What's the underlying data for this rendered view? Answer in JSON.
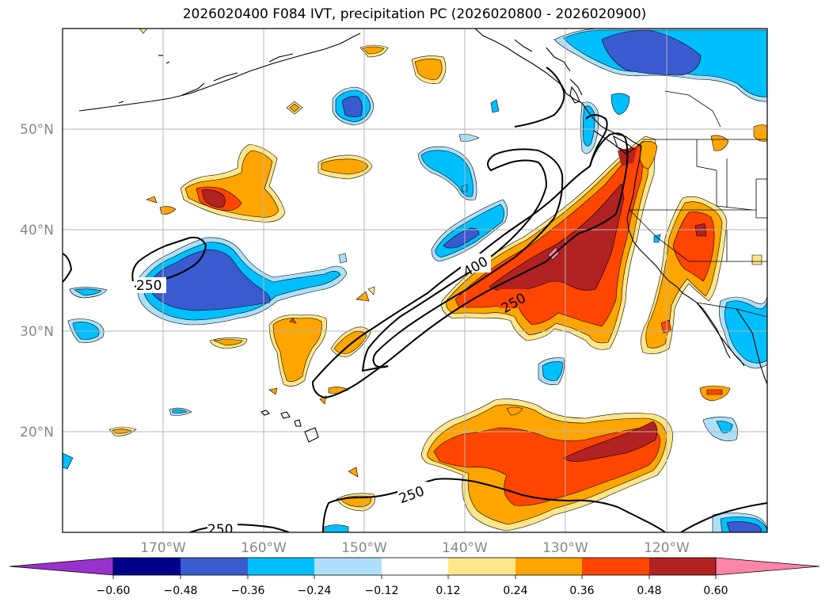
{
  "title": "2026020400 F084 IVT, precipitation PC (2026020800 - 2026020900)",
  "map": {
    "lon_range": [
      -180,
      -110
    ],
    "lat_range": [
      10,
      60
    ],
    "lat_labels": [
      "20°N",
      "30°N",
      "40°N",
      "50°N"
    ],
    "lon_labels": [
      "170°W",
      "160°W",
      "150°W",
      "140°W",
      "130°W",
      "120°W"
    ],
    "contour_labels": [
      "250",
      "400",
      "250",
      "250",
      "250"
    ]
  },
  "colorbar": {
    "ticks": [
      "−0.60",
      "−0.48",
      "−0.36",
      "−0.24",
      "−0.12",
      "0.12",
      "0.24",
      "0.36",
      "0.48",
      "0.60"
    ],
    "colors": [
      "#9932CC",
      "#00008B",
      "#3A5BD0",
      "#00BFFF",
      "#ADE0F8",
      "#FFFFFF",
      "#FFE68A",
      "#FFA500",
      "#FF4500",
      "#B22222",
      "#FF85A8"
    ]
  }
}
